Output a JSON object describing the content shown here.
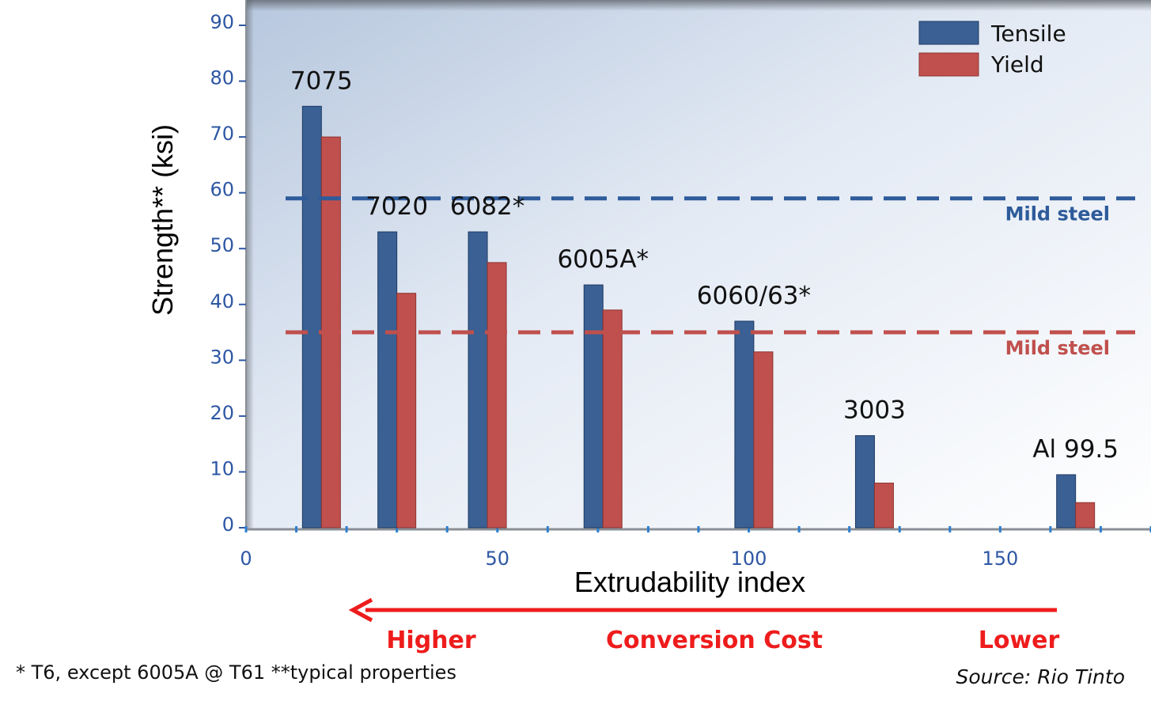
{
  "chart_data": {
    "type": "bar",
    "title": "",
    "xlabel": "Extrudability index",
    "ylabel": "Strength** (ksi)",
    "xlim": [
      0,
      180
    ],
    "ylim": [
      0,
      90
    ],
    "x_ticks": [
      "0",
      "50",
      "100",
      "150"
    ],
    "y_ticks": [
      "0",
      "10",
      "20",
      "30",
      "40",
      "50",
      "60",
      "70",
      "80",
      "90"
    ],
    "grid": false,
    "legend_position": "top-right",
    "colors": {
      "Tensile": "#3a6094",
      "Yield": "#c0504d"
    },
    "categories": [
      {
        "label": "7075",
        "x": 15
      },
      {
        "label": "7020",
        "x": 30
      },
      {
        "label": "6082*",
        "x": 48
      },
      {
        "label": "6005A*",
        "x": 71
      },
      {
        "label": "6060/63*",
        "x": 101
      },
      {
        "label": "3003",
        "x": 125
      },
      {
        "label": "Al 99.5",
        "x": 165
      }
    ],
    "series": [
      {
        "name": "Tensile",
        "values": [
          75.5,
          53,
          53,
          43.5,
          37,
          16.5,
          9.5
        ]
      },
      {
        "name": "Yield",
        "values": [
          70,
          42,
          47.5,
          39,
          31.5,
          8,
          4.5
        ]
      }
    ],
    "reference_lines": [
      {
        "label": "Mild steel",
        "value": 59,
        "color": "#2e5b9a"
      },
      {
        "label": "Mild steel",
        "value": 35,
        "color": "#c0504d"
      }
    ]
  },
  "annotations": {
    "arrow_direction": "left",
    "higher": "Higher",
    "conversion_cost": "Conversion Cost",
    "lower": "Lower",
    "footnote": "* T6, except 6005A @ T61  **typical properties",
    "source": "Source: Rio Tinto"
  }
}
